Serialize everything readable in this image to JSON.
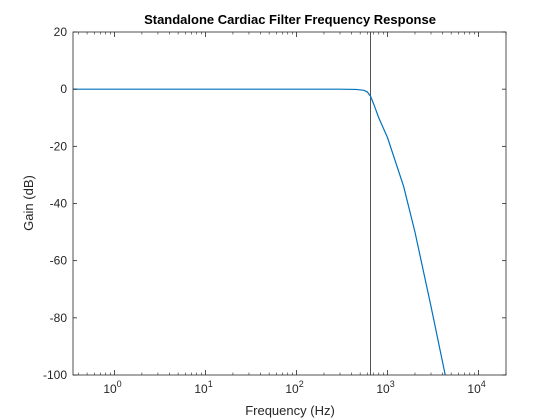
{
  "chart_data": {
    "type": "line",
    "title": "Standalone Cardiac Filter Frequency Response",
    "xlabel": "Frequency (Hz)",
    "ylabel": "Gain (dB)",
    "xscale": "log",
    "xlim": [
      0.35,
      20000
    ],
    "ylim": [
      -100,
      20
    ],
    "grid": false,
    "legend": "none",
    "x_tick_labels": [
      {
        "value": 1,
        "base": "10",
        "exp": "0"
      },
      {
        "value": 10,
        "base": "10",
        "exp": "1"
      },
      {
        "value": 100,
        "base": "10",
        "exp": "2"
      },
      {
        "value": 1000,
        "base": "10",
        "exp": "3"
      },
      {
        "value": 10000,
        "base": "10",
        "exp": "4"
      }
    ],
    "y_ticks": [
      20,
      0,
      -20,
      -40,
      -60,
      -80,
      -100
    ],
    "y_tick_labels": [
      "20",
      "0",
      "-20",
      "-40",
      "-60",
      "-80",
      "-100"
    ],
    "cutoff_line_hz": 650,
    "series": [
      {
        "color": "#0072bd",
        "x": [
          0.35,
          1,
          10,
          100,
          300,
          450,
          550,
          600,
          650,
          700,
          800,
          1000,
          1500,
          2000,
          3000,
          4300
        ],
        "y": [
          0,
          0,
          0,
          0,
          0,
          -0.1,
          -0.4,
          -1.0,
          -2.5,
          -5.0,
          -10.0,
          -17.0,
          -34.0,
          -50.0,
          -76.0,
          -100.0
        ]
      }
    ]
  }
}
